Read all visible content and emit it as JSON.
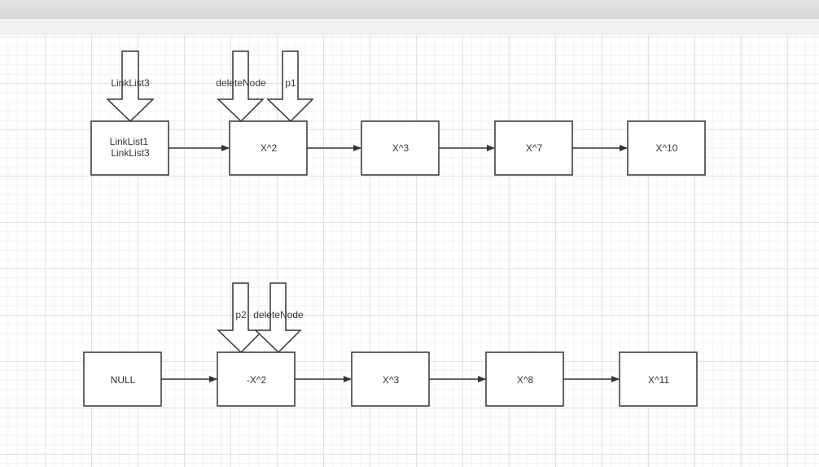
{
  "list_a": {
    "nodes": [
      "LinkList1\nLinkList3",
      "X^2",
      "X^3",
      "X^7",
      "X^10"
    ],
    "pointers": [
      "LinkList3",
      "deleteNode",
      "p1"
    ]
  },
  "list_b": {
    "nodes": [
      "NULL",
      "-X^2",
      "X^3",
      "X^8",
      "X^11"
    ],
    "pointers": [
      "p2",
      "deleteNode"
    ]
  },
  "colors": {
    "stroke": "#333333",
    "text": "#333333",
    "grid": "#e1e1e1",
    "canvas": "#ffffff"
  }
}
